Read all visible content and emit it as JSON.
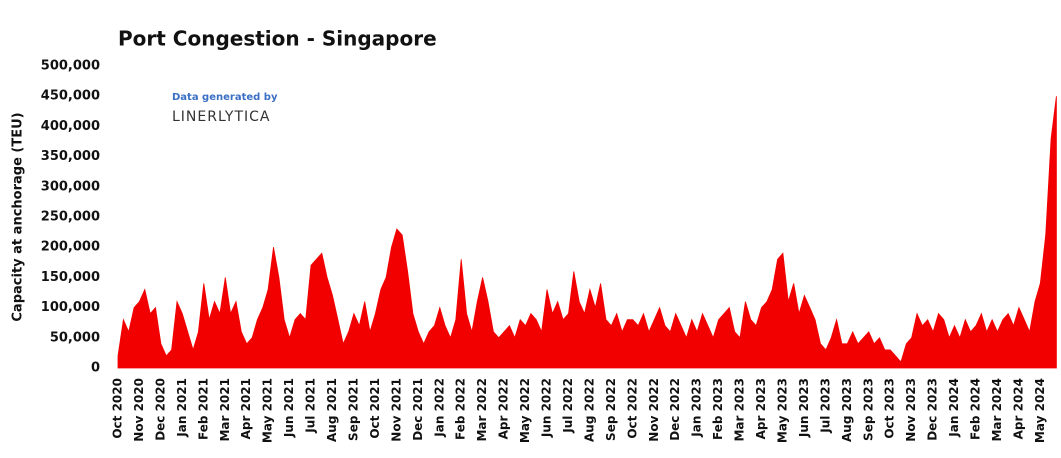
{
  "chart_data": {
    "type": "area",
    "title": "Port Congestion - Singapore",
    "y_label": "Capacity at anchorage (TEU)",
    "annotations": [
      "Data generated by",
      "LINERLYTICA"
    ],
    "color": "#f20000",
    "grid": false,
    "ylim": [
      0,
      500000
    ],
    "yticks": [
      0,
      {
        "value": 50000,
        "label": "50,000"
      },
      {
        "value": 100000,
        "label": "100,000"
      },
      {
        "value": 150000,
        "label": "150,000"
      },
      {
        "value": 200000,
        "label": "200,000"
      },
      {
        "value": 250000,
        "label": "250,000"
      },
      {
        "value": 300000,
        "label": "300,000"
      },
      {
        "value": 350000,
        "label": "350,000"
      },
      {
        "value": 400000,
        "label": "400,000"
      },
      {
        "value": 450000,
        "label": "450,000"
      },
      {
        "value": 500000,
        "label": "500,000"
      }
    ],
    "categories": [
      "Oct 2020",
      null,
      null,
      null,
      "Nov 2020",
      null,
      null,
      null,
      "Dec 2020",
      null,
      null,
      null,
      "Jan 2021",
      null,
      null,
      null,
      "Feb 2021",
      null,
      null,
      null,
      "Mar 2021",
      null,
      null,
      null,
      "Apr 2021",
      null,
      null,
      null,
      "May 2021",
      null,
      null,
      null,
      "Jun 2021",
      null,
      null,
      null,
      "Jul 2021",
      null,
      null,
      null,
      "Aug 2021",
      null,
      null,
      null,
      "Sep 2021",
      null,
      null,
      null,
      "Oct 2021",
      null,
      null,
      null,
      "Nov 2021",
      null,
      null,
      null,
      "Dec 2021",
      null,
      null,
      null,
      "Jan 2022",
      null,
      null,
      null,
      "Feb 2022",
      null,
      null,
      null,
      "Mar 2022",
      null,
      null,
      null,
      "Apr 2022",
      null,
      null,
      null,
      "May 2022",
      null,
      null,
      null,
      "Jun 2022",
      null,
      null,
      null,
      "Jul 2022",
      null,
      null,
      null,
      "Aug 2022",
      null,
      null,
      null,
      "Sep 2022",
      null,
      null,
      null,
      "Oct 2022",
      null,
      null,
      null,
      "Nov 2022",
      null,
      null,
      null,
      "Dec 2022",
      null,
      null,
      null,
      "Jan 2023",
      null,
      null,
      null,
      "Feb 2023",
      null,
      null,
      null,
      "Mar 2023",
      null,
      null,
      null,
      "Apr 2023",
      null,
      null,
      null,
      "May 2023",
      null,
      null,
      null,
      "Jun 2023",
      null,
      null,
      null,
      "Jul 2023",
      null,
      null,
      null,
      "Aug 2023",
      null,
      null,
      null,
      "Sep 2023",
      null,
      null,
      null,
      "Oct 2023",
      null,
      null,
      null,
      "Nov 2023",
      null,
      null,
      null,
      "Dec 2023",
      null,
      null,
      null,
      "Jan 2024",
      null,
      null,
      null,
      "Feb 2024",
      null,
      null,
      null,
      "Mar 2024",
      null,
      null,
      null,
      "Apr 2024",
      null,
      null,
      null,
      "May 2024",
      null,
      null,
      null
    ],
    "values": [
      20000,
      80000,
      60000,
      100000,
      110000,
      130000,
      90000,
      100000,
      40000,
      20000,
      30000,
      110000,
      90000,
      60000,
      30000,
      60000,
      140000,
      80000,
      110000,
      90000,
      150000,
      90000,
      110000,
      60000,
      40000,
      50000,
      80000,
      100000,
      130000,
      200000,
      150000,
      80000,
      50000,
      80000,
      90000,
      80000,
      170000,
      180000,
      190000,
      150000,
      120000,
      80000,
      40000,
      60000,
      90000,
      70000,
      110000,
      60000,
      90000,
      130000,
      150000,
      200000,
      230000,
      220000,
      160000,
      90000,
      60000,
      40000,
      60000,
      70000,
      100000,
      70000,
      50000,
      80000,
      180000,
      90000,
      60000,
      110000,
      150000,
      110000,
      60000,
      50000,
      60000,
      70000,
      50000,
      80000,
      70000,
      90000,
      80000,
      60000,
      130000,
      90000,
      110000,
      80000,
      90000,
      160000,
      110000,
      90000,
      130000,
      100000,
      140000,
      80000,
      70000,
      90000,
      60000,
      80000,
      80000,
      70000,
      90000,
      60000,
      80000,
      100000,
      70000,
      60000,
      90000,
      70000,
      50000,
      80000,
      60000,
      90000,
      70000,
      50000,
      80000,
      90000,
      100000,
      60000,
      50000,
      110000,
      80000,
      70000,
      100000,
      110000,
      130000,
      180000,
      190000,
      110000,
      140000,
      90000,
      120000,
      100000,
      80000,
      40000,
      30000,
      50000,
      80000,
      40000,
      40000,
      60000,
      40000,
      50000,
      60000,
      40000,
      50000,
      30000,
      30000,
      20000,
      10000,
      40000,
      50000,
      90000,
      70000,
      80000,
      60000,
      90000,
      80000,
      50000,
      70000,
      50000,
      80000,
      60000,
      70000,
      90000,
      60000,
      80000,
      60000,
      80000,
      90000,
      70000,
      100000,
      80000,
      60000,
      110000,
      140000,
      220000,
      380000,
      450000
    ]
  }
}
